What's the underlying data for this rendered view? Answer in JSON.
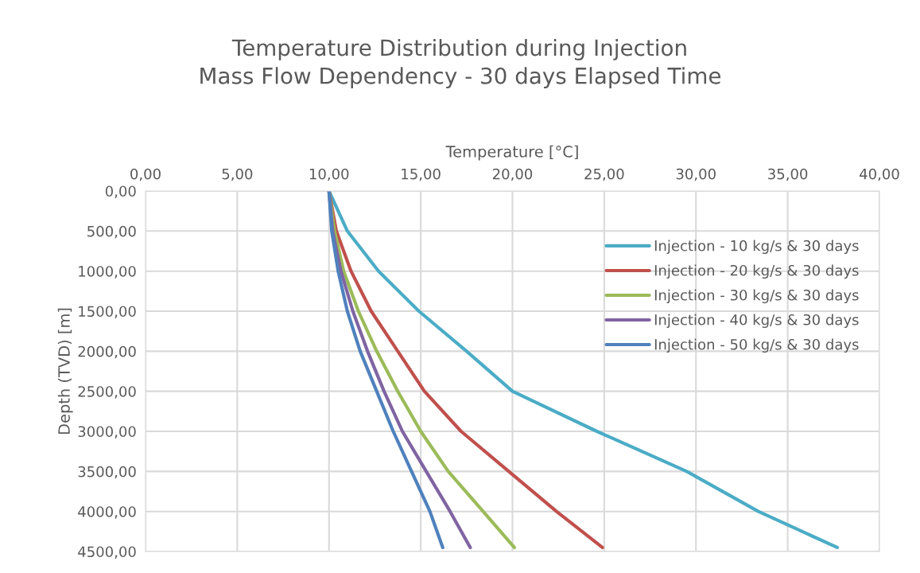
{
  "chart_data": {
    "type": "line",
    "title": "Temperature Distribution during Injection\nMass Flow Dependency - 30 days Elapsed Time",
    "xlabel": "Temperature [°C]",
    "ylabel": "Depth (TVD) [m]",
    "xlim": [
      0,
      40
    ],
    "xticks": [
      {
        "value": 0,
        "label": "0,00"
      },
      {
        "value": 5,
        "label": "5,00"
      },
      {
        "value": 10,
        "label": "10,00"
      },
      {
        "value": 15,
        "label": "15,00"
      },
      {
        "value": 20,
        "label": "20,00"
      },
      {
        "value": 25,
        "label": "25,00"
      },
      {
        "value": 30,
        "label": "30,00"
      },
      {
        "value": 35,
        "label": "35,00"
      },
      {
        "value": 40,
        "label": "40,00"
      }
    ],
    "ylim": [
      4500,
      0
    ],
    "yticks": [
      {
        "value": 0,
        "label": "0,00"
      },
      {
        "value": 500,
        "label": "500,00"
      },
      {
        "value": 1000,
        "label": "1000,00"
      },
      {
        "value": 1500,
        "label": "1500,00"
      },
      {
        "value": 2000,
        "label": "2000,00"
      },
      {
        "value": 2500,
        "label": "2500,00"
      },
      {
        "value": 3000,
        "label": "3000,00"
      },
      {
        "value": 3500,
        "label": "3500,00"
      },
      {
        "value": 4000,
        "label": "4000,00"
      },
      {
        "value": 4500,
        "label": "4500,00"
      }
    ],
    "grid": true,
    "legend": "top right",
    "marker": "none",
    "line_style": "solid",
    "series": [
      {
        "name": "Injection - 10 kg/s & 30 days",
        "color": "#4bacc6",
        "x": [
          10.0,
          11.0,
          12.7,
          14.9,
          17.5,
          20.0,
          24.6,
          29.5,
          33.4,
          37.7
        ],
        "values": [
          0,
          500,
          1000,
          1500,
          2000,
          2500,
          3000,
          3500,
          4000,
          4450
        ]
      },
      {
        "name": "Injection - 20 kg/s & 30 days",
        "color": "#c0504d",
        "x": [
          10.0,
          10.4,
          11.2,
          12.3,
          13.75,
          15.2,
          17.2,
          19.8,
          22.4,
          24.9
        ],
        "values": [
          0,
          500,
          1000,
          1500,
          2000,
          2500,
          3000,
          3500,
          4000,
          4450
        ]
      },
      {
        "name": "Injection - 30 kg/s & 30 days",
        "color": "#9bbb59",
        "x": [
          10.0,
          10.3,
          10.8,
          11.6,
          12.6,
          13.75,
          15.0,
          16.5,
          18.4,
          20.1
        ],
        "values": [
          0,
          500,
          1000,
          1500,
          2000,
          2500,
          3000,
          3500,
          4000,
          4450
        ]
      },
      {
        "name": "Injection - 40 kg/s & 30 days",
        "color": "#8064a2",
        "x": [
          10.0,
          10.2,
          10.65,
          11.3,
          12.1,
          13.0,
          14.0,
          15.3,
          16.6,
          17.7
        ],
        "values": [
          0,
          500,
          1000,
          1500,
          2000,
          2500,
          3000,
          3500,
          4000,
          4450
        ]
      },
      {
        "name": "Injection - 50 kg/s & 30 days",
        "color": "#4f81bd",
        "x": [
          10.0,
          10.15,
          10.5,
          11.0,
          11.7,
          12.6,
          13.5,
          14.5,
          15.5,
          16.2
        ],
        "values": [
          0,
          500,
          1000,
          1500,
          2000,
          2500,
          3000,
          3500,
          4000,
          4450
        ]
      }
    ]
  }
}
